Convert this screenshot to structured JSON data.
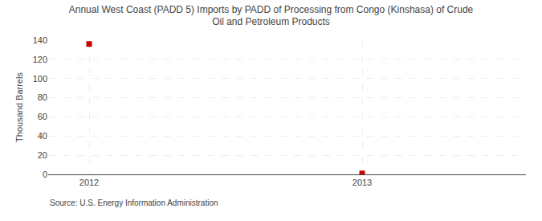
{
  "chart_data": {
    "type": "scatter",
    "title": "Annual West Coast (PADD 5) Imports by PADD of Processing from Congo (Kinshasa) of Crude\nOil and Petroleum Products",
    "ylabel": "Thousand Barrels",
    "annotations": [
      "Source: U.S. Energy Information Administration"
    ],
    "x": [
      2012,
      2013
    ],
    "values": [
      136,
      1
    ],
    "color": "#cc0000",
    "marker": "square",
    "xlim": [
      2011.85,
      2013.6
    ],
    "xticks": [
      2012,
      2013
    ],
    "ylim": [
      0,
      140
    ],
    "yticks": [
      0,
      20,
      40,
      60,
      80,
      100,
      120,
      140
    ],
    "grid": true
  }
}
